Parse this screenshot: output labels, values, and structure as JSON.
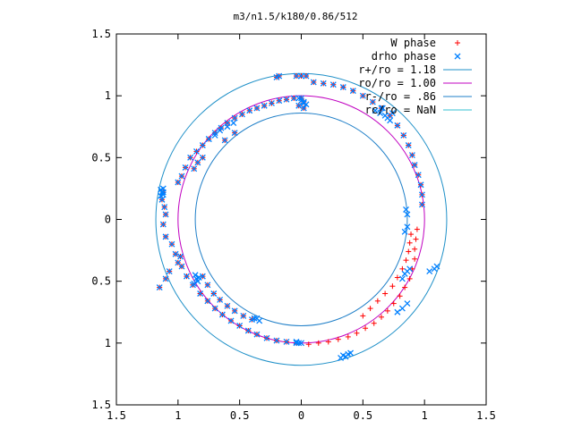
{
  "chart_data": {
    "type": "scatter",
    "title": "m3/n1.5/k180/0.86/512",
    "xlabel": "",
    "ylabel": "",
    "xlim": [
      -1.5,
      1.5
    ],
    "ylim": [
      -1.5,
      1.5
    ],
    "x_ticks": [
      "1.5",
      "1",
      "0.5",
      "0",
      "0.5",
      "1",
      "1.5"
    ],
    "y_ticks": [
      "1.5",
      "1",
      "0.5",
      "0",
      "0.5",
      "1",
      "1.5"
    ],
    "grid": false,
    "legend_position": "top-right",
    "legend": [
      {
        "label": "W phase",
        "marker": "plus",
        "color": "#ff0000"
      },
      {
        "label": "drho phase",
        "marker": "cross",
        "color": "#0080ff"
      },
      {
        "label": "r+/ro = 1.18",
        "line": true,
        "color": "#1f90c8"
      },
      {
        "label": "ro/ro = 1.00",
        "line": true,
        "color": "#c000c0"
      },
      {
        "label": "r-/ro = .86",
        "line": true,
        "color": "#1f7fc8"
      },
      {
        "label": "rc/ro = NaN",
        "line": true,
        "color": "#33c0d0"
      }
    ],
    "circles": [
      {
        "name": "r+/ro = 1.18",
        "r": 1.18,
        "color": "#1f90c8"
      },
      {
        "name": "ro/ro = 1.00",
        "r": 1.0,
        "color": "#c000c0"
      },
      {
        "name": "r-/ro = .86",
        "r": 0.86,
        "color": "#1f7fc8"
      }
    ],
    "series": [
      {
        "name": "W phase",
        "marker": "plus",
        "color": "#ff0000",
        "points": [
          [
            0.0,
            0.98
          ],
          [
            -0.06,
            0.98
          ],
          [
            -0.12,
            0.97
          ],
          [
            -0.18,
            0.96
          ],
          [
            -0.24,
            0.94
          ],
          [
            -0.3,
            0.92
          ],
          [
            -0.36,
            0.9
          ],
          [
            -0.42,
            0.88
          ],
          [
            -0.48,
            0.85
          ],
          [
            -0.54,
            0.82
          ],
          [
            -0.6,
            0.78
          ],
          [
            -0.65,
            0.74
          ],
          [
            -0.7,
            0.7
          ],
          [
            -0.75,
            0.65
          ],
          [
            -0.8,
            0.6
          ],
          [
            -0.85,
            0.55
          ],
          [
            -0.9,
            0.5
          ],
          [
            -0.94,
            0.42
          ],
          [
            -0.97,
            0.35
          ],
          [
            -1.0,
            0.3
          ],
          [
            -1.12,
            0.22
          ],
          [
            -1.13,
            0.16
          ],
          [
            -1.11,
            0.1
          ],
          [
            -1.1,
            0.04
          ],
          [
            -1.12,
            -0.04
          ],
          [
            -1.1,
            -0.14
          ],
          [
            -1.05,
            -0.2
          ],
          [
            -1.02,
            -0.28
          ],
          [
            -1.0,
            -0.35
          ],
          [
            -1.07,
            -0.42
          ],
          [
            -1.1,
            -0.48
          ],
          [
            -1.15,
            -0.55
          ],
          [
            -0.98,
            -0.3
          ],
          [
            -0.97,
            -0.38
          ],
          [
            -0.93,
            -0.46
          ],
          [
            -0.88,
            -0.53
          ],
          [
            -0.82,
            -0.6
          ],
          [
            -0.76,
            -0.66
          ],
          [
            -0.7,
            -0.72
          ],
          [
            -0.64,
            -0.77
          ],
          [
            -0.57,
            -0.82
          ],
          [
            -0.5,
            -0.86
          ],
          [
            -0.43,
            -0.9
          ],
          [
            -0.36,
            -0.93
          ],
          [
            -0.28,
            -0.96
          ],
          [
            -0.2,
            -0.98
          ],
          [
            -0.12,
            -0.99
          ],
          [
            -0.04,
            -1.0
          ],
          [
            -0.8,
            -0.46
          ],
          [
            -0.76,
            -0.53
          ],
          [
            -0.71,
            -0.6
          ],
          [
            -0.66,
            -0.65
          ],
          [
            -0.6,
            -0.7
          ],
          [
            -0.54,
            -0.74
          ],
          [
            -0.47,
            -0.78
          ],
          [
            -0.4,
            -0.81
          ],
          [
            0.06,
            -1.01
          ],
          [
            0.14,
            -1.0
          ],
          [
            0.22,
            -0.99
          ],
          [
            0.3,
            -0.97
          ],
          [
            0.38,
            -0.95
          ],
          [
            0.45,
            -0.92
          ],
          [
            0.52,
            -0.88
          ],
          [
            0.59,
            -0.84
          ],
          [
            0.65,
            -0.79
          ],
          [
            0.7,
            -0.74
          ],
          [
            0.75,
            -0.68
          ],
          [
            0.8,
            -0.62
          ],
          [
            0.84,
            -0.55
          ],
          [
            0.88,
            -0.48
          ],
          [
            0.9,
            -0.4
          ],
          [
            0.92,
            -0.32
          ],
          [
            0.92,
            -0.24
          ],
          [
            0.93,
            -0.16
          ],
          [
            0.94,
            -0.08
          ],
          [
            0.5,
            -0.78
          ],
          [
            0.56,
            -0.72
          ],
          [
            0.62,
            -0.66
          ],
          [
            0.68,
            -0.6
          ],
          [
            0.74,
            -0.54
          ],
          [
            0.78,
            -0.47
          ],
          [
            0.82,
            -0.4
          ],
          [
            0.85,
            -0.33
          ],
          [
            0.87,
            -0.26
          ],
          [
            0.88,
            -0.19
          ],
          [
            0.89,
            -0.12
          ],
          [
            0.98,
            0.12
          ],
          [
            0.98,
            0.2
          ],
          [
            0.97,
            0.28
          ],
          [
            0.95,
            0.36
          ],
          [
            0.92,
            0.44
          ],
          [
            0.9,
            0.52
          ],
          [
            0.87,
            0.6
          ],
          [
            0.83,
            0.68
          ],
          [
            0.78,
            0.76
          ],
          [
            0.72,
            0.84
          ],
          [
            0.65,
            0.9
          ],
          [
            0.58,
            0.95
          ],
          [
            0.5,
            1.0
          ],
          [
            0.42,
            1.04
          ],
          [
            0.34,
            1.07
          ],
          [
            0.26,
            1.09
          ],
          [
            0.18,
            1.1
          ],
          [
            0.1,
            1.11
          ],
          [
            -0.04,
            1.16
          ],
          [
            -0.18,
            1.16
          ],
          [
            -0.2,
            1.15
          ],
          [
            0.0,
            1.16
          ],
          [
            0.04,
            1.16
          ],
          [
            0.02,
            0.95
          ],
          [
            0.02,
            0.9
          ],
          [
            -0.02,
            0.92
          ],
          [
            -0.54,
            0.7
          ],
          [
            -0.62,
            0.64
          ],
          [
            -0.8,
            0.5
          ],
          [
            -0.84,
            0.46
          ],
          [
            -0.87,
            0.41
          ]
        ]
      },
      {
        "name": "drho phase",
        "marker": "cross",
        "color": "#0080ff",
        "points": [
          [
            0.0,
            0.98
          ],
          [
            -0.06,
            0.98
          ],
          [
            -0.12,
            0.97
          ],
          [
            -0.18,
            0.96
          ],
          [
            -0.24,
            0.94
          ],
          [
            -0.3,
            0.92
          ],
          [
            -0.36,
            0.9
          ],
          [
            -0.42,
            0.88
          ],
          [
            -0.48,
            0.85
          ],
          [
            -0.54,
            0.82
          ],
          [
            -0.6,
            0.78
          ],
          [
            -0.65,
            0.74
          ],
          [
            -0.7,
            0.7
          ],
          [
            -0.75,
            0.65
          ],
          [
            -0.8,
            0.6
          ],
          [
            -0.85,
            0.55
          ],
          [
            -0.9,
            0.5
          ],
          [
            -0.94,
            0.42
          ],
          [
            -0.97,
            0.35
          ],
          [
            -1.0,
            0.3
          ],
          [
            -1.12,
            0.22
          ],
          [
            -1.13,
            0.16
          ],
          [
            -1.11,
            0.1
          ],
          [
            -1.1,
            0.04
          ],
          [
            -1.12,
            -0.04
          ],
          [
            -1.1,
            -0.14
          ],
          [
            -1.05,
            -0.2
          ],
          [
            -1.02,
            -0.28
          ],
          [
            -1.0,
            -0.35
          ],
          [
            -1.07,
            -0.42
          ],
          [
            -1.1,
            -0.48
          ],
          [
            -1.15,
            -0.55
          ],
          [
            -0.98,
            -0.3
          ],
          [
            -0.97,
            -0.38
          ],
          [
            -0.93,
            -0.46
          ],
          [
            -0.88,
            -0.53
          ],
          [
            -0.82,
            -0.6
          ],
          [
            -0.76,
            -0.66
          ],
          [
            -0.7,
            -0.72
          ],
          [
            -0.64,
            -0.77
          ],
          [
            -0.57,
            -0.82
          ],
          [
            -0.5,
            -0.86
          ],
          [
            -0.43,
            -0.9
          ],
          [
            -0.36,
            -0.93
          ],
          [
            -0.28,
            -0.96
          ],
          [
            -0.2,
            -0.98
          ],
          [
            -0.12,
            -0.99
          ],
          [
            -0.04,
            -1.0
          ],
          [
            -0.8,
            -0.46
          ],
          [
            -0.76,
            -0.53
          ],
          [
            -0.71,
            -0.6
          ],
          [
            -0.66,
            -0.65
          ],
          [
            -0.6,
            -0.7
          ],
          [
            -0.54,
            -0.74
          ],
          [
            -0.47,
            -0.78
          ],
          [
            -0.4,
            -0.81
          ],
          [
            0.98,
            0.12
          ],
          [
            0.98,
            0.2
          ],
          [
            0.97,
            0.28
          ],
          [
            0.95,
            0.36
          ],
          [
            0.92,
            0.44
          ],
          [
            0.9,
            0.52
          ],
          [
            0.87,
            0.6
          ],
          [
            0.83,
            0.68
          ],
          [
            0.78,
            0.76
          ],
          [
            0.72,
            0.84
          ],
          [
            0.65,
            0.9
          ],
          [
            0.58,
            0.95
          ],
          [
            0.5,
            1.0
          ],
          [
            0.42,
            1.04
          ],
          [
            0.34,
            1.07
          ],
          [
            0.26,
            1.09
          ],
          [
            0.18,
            1.1
          ],
          [
            0.1,
            1.11
          ],
          [
            -0.04,
            1.16
          ],
          [
            -0.18,
            1.16
          ],
          [
            -0.2,
            1.15
          ],
          [
            0.0,
            1.16
          ],
          [
            0.04,
            1.16
          ],
          [
            0.02,
            0.95
          ],
          [
            0.02,
            0.9
          ],
          [
            -0.02,
            0.92
          ],
          [
            -0.54,
            0.7
          ],
          [
            -0.62,
            0.64
          ],
          [
            -0.8,
            0.5
          ],
          [
            -0.84,
            0.46
          ],
          [
            -0.87,
            0.41
          ],
          [
            -0.75,
            0.65
          ],
          [
            -0.7,
            0.68
          ],
          [
            -0.66,
            0.72
          ],
          [
            -0.6,
            0.75
          ],
          [
            -0.55,
            0.78
          ],
          [
            -1.14,
            0.24
          ],
          [
            -1.13,
            0.22
          ],
          [
            -1.12,
            0.2
          ],
          [
            -1.14,
            0.19
          ],
          [
            -1.12,
            0.25
          ],
          [
            -0.85,
            -0.48
          ],
          [
            -0.84,
            -0.5
          ],
          [
            -0.87,
            -0.52
          ],
          [
            -0.83,
            -0.47
          ],
          [
            -0.86,
            -0.45
          ],
          [
            -0.36,
            -0.8
          ],
          [
            -0.34,
            -0.82
          ],
          [
            -0.38,
            -0.8
          ],
          [
            -0.02,
            -1.0
          ],
          [
            0.0,
            -1.0
          ],
          [
            -0.04,
            -0.99
          ],
          [
            0.34,
            -1.1
          ],
          [
            0.36,
            -1.11
          ],
          [
            0.38,
            -1.09
          ],
          [
            0.32,
            -1.12
          ],
          [
            0.4,
            -1.08
          ],
          [
            0.84,
            -0.44
          ],
          [
            0.82,
            -0.48
          ],
          [
            0.86,
            -0.42
          ],
          [
            0.88,
            -0.4
          ],
          [
            0.84,
            -0.1
          ],
          [
            0.86,
            -0.06
          ],
          [
            0.85,
            0.08
          ],
          [
            0.86,
            0.04
          ],
          [
            0.6,
            0.88
          ],
          [
            0.64,
            0.86
          ],
          [
            0.68,
            0.84
          ],
          [
            0.7,
            0.82
          ],
          [
            0.72,
            0.8
          ],
          [
            0.74,
            0.86
          ],
          [
            0.66,
            0.9
          ],
          [
            0.02,
            0.94
          ],
          [
            0.0,
            0.96
          ],
          [
            -0.02,
            0.98
          ],
          [
            0.04,
            0.93
          ],
          [
            1.04,
            -0.42
          ],
          [
            1.08,
            -0.4
          ],
          [
            1.1,
            -0.38
          ],
          [
            0.82,
            -0.72
          ],
          [
            0.86,
            -0.68
          ],
          [
            0.78,
            -0.75
          ]
        ]
      }
    ]
  }
}
